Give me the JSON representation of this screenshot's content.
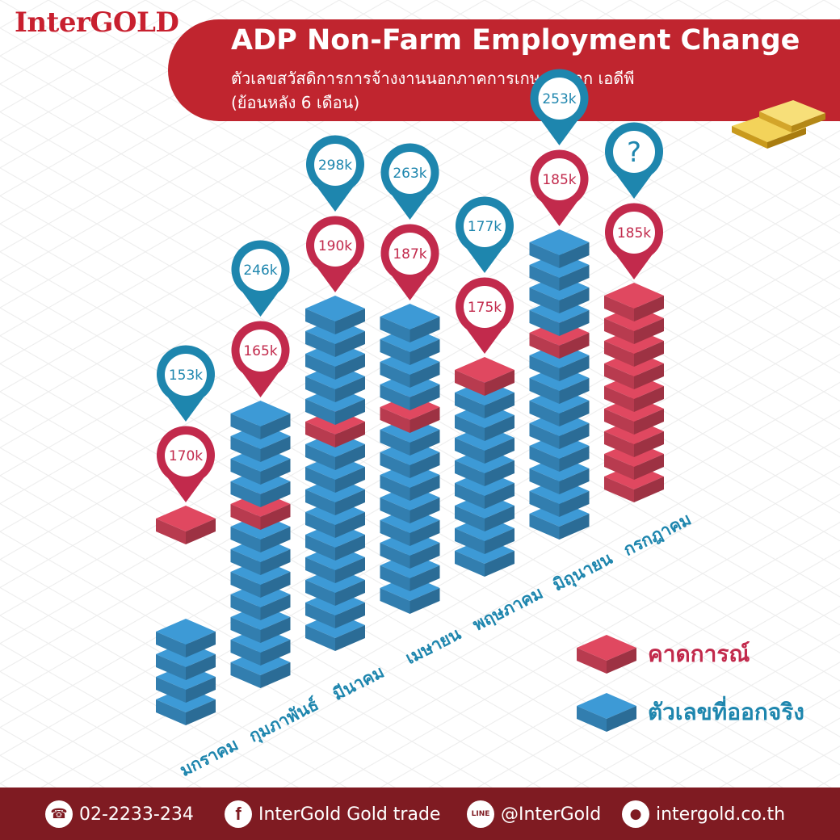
{
  "brand": {
    "logo_text": "InterGOLD"
  },
  "header": {
    "title": "ADP Non-Farm Employment Change",
    "subtitle_line1": "ตัวเลขสวัสดิการการจ้างงานนอกภาคการเกษตร จาก เอดีพี",
    "subtitle_line2": "(ย้อนหลัง 6 เดือน)"
  },
  "colors": {
    "forecast": "#e04860",
    "actual": "#3d9ad6",
    "banner": "#c0252f",
    "footer": "#7f1b22",
    "pin_actual": "#1e86ae",
    "pin_forecast": "#c22a4c"
  },
  "chart_data": {
    "type": "bar",
    "categories": [
      "มกราคม",
      "กุมภาพันธ์",
      "มีนาคม",
      "เมษายน",
      "พฤษภาคม",
      "มิถุนายน",
      "กรกฎาคม"
    ],
    "series": [
      {
        "name": "คาดการณ์",
        "values": [
          170,
          165,
          190,
          187,
          175,
          185,
          185
        ],
        "labels": [
          "170k",
          "165k",
          "190k",
          "187k",
          "175k",
          "185k",
          "185k"
        ]
      },
      {
        "name": "ตัวเลขที่ออกจริง",
        "values": [
          153,
          246,
          298,
          263,
          177,
          253,
          null
        ],
        "labels": [
          "153k",
          "246k",
          "298k",
          "263k",
          "177k",
          "253k",
          "?"
        ]
      }
    ]
  },
  "legend": {
    "forecast_label": "คาดการณ์",
    "actual_label": "ตัวเลขที่ออกจริง"
  },
  "footer": {
    "phone": "02-2233-234",
    "facebook": "InterGold Gold trade",
    "line": "@InterGold",
    "website": "intergold.co.th",
    "line_icon_text": "LINE"
  }
}
